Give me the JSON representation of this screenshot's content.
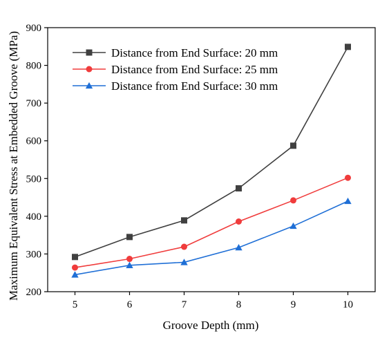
{
  "chart_data": {
    "type": "line",
    "title": "",
    "xlabel": "Groove Depth (mm)",
    "ylabel": "Maximum Equivalent Stress at Embedded Groove (MPa)",
    "x": [
      5,
      6,
      7,
      8,
      9,
      10
    ],
    "xlim": [
      4.5,
      10.5
    ],
    "ylim": [
      200,
      900
    ],
    "xticks": [
      5,
      6,
      7,
      8,
      9,
      10
    ],
    "yticks": [
      200,
      300,
      400,
      500,
      600,
      700,
      800,
      900
    ],
    "grid": false,
    "legend_position": "top-left",
    "series": [
      {
        "name": "Distance from End Surface: 20 mm",
        "values": [
          292,
          345,
          389,
          474,
          587,
          849
        ],
        "color": "#404040",
        "marker": "square"
      },
      {
        "name": "Distance from End Surface: 25 mm",
        "values": [
          264,
          287,
          319,
          386,
          442,
          502
        ],
        "color": "#f03c3c",
        "marker": "circle"
      },
      {
        "name": "Distance from End Surface: 30 mm",
        "values": [
          245,
          270,
          278,
          317,
          374,
          440
        ],
        "color": "#1f6fd6",
        "marker": "triangle"
      }
    ]
  }
}
